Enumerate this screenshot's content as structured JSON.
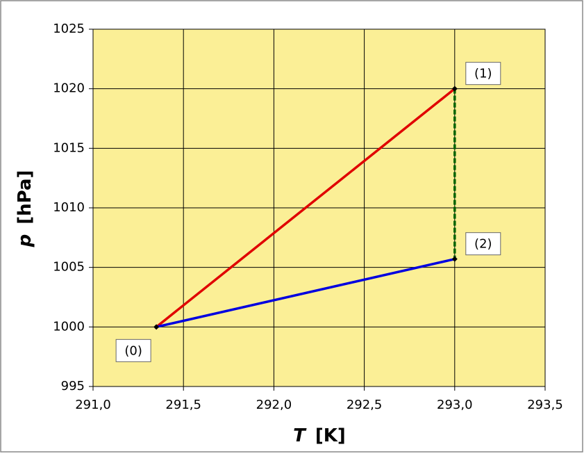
{
  "chart_data": {
    "type": "line",
    "x_label_symbol": "T",
    "x_label_unit": "[K]",
    "y_label_symbol": "p",
    "y_label_unit": "[hPa]",
    "xlim": [
      291.0,
      293.5
    ],
    "xticks": [
      {
        "value": 291.0,
        "label": "291,0"
      },
      {
        "value": 291.5,
        "label": "291,5"
      },
      {
        "value": 292.0,
        "label": "292,0"
      },
      {
        "value": 292.5,
        "label": "292,5"
      },
      {
        "value": 293.0,
        "label": "293,0"
      },
      {
        "value": 293.5,
        "label": "293,5"
      }
    ],
    "ylim": [
      995,
      1025
    ],
    "yticks": [
      995,
      1000,
      1005,
      1010,
      1015,
      1020,
      1025
    ],
    "grid": true,
    "series": [
      {
        "color": "#e00000",
        "x": [
          291.35,
          293.0
        ],
        "values": [
          1000,
          1020
        ]
      },
      {
        "color": "#0000e0",
        "x": [
          291.35,
          293.0
        ],
        "values": [
          1000,
          1005.7
        ]
      },
      {
        "color": "#006400",
        "dashed": true,
        "x": [
          293.0,
          293.0
        ],
        "values": [
          1020,
          1005.7
        ]
      }
    ],
    "annotations": [
      {
        "text": "(0)",
        "x": 291.35,
        "y": 1000,
        "side": "below-left"
      },
      {
        "text": "(1)",
        "x": 293.0,
        "y": 1020,
        "side": "above-right"
      },
      {
        "text": "(2)",
        "x": 293.0,
        "y": 1005.7,
        "side": "above-right"
      }
    ]
  }
}
